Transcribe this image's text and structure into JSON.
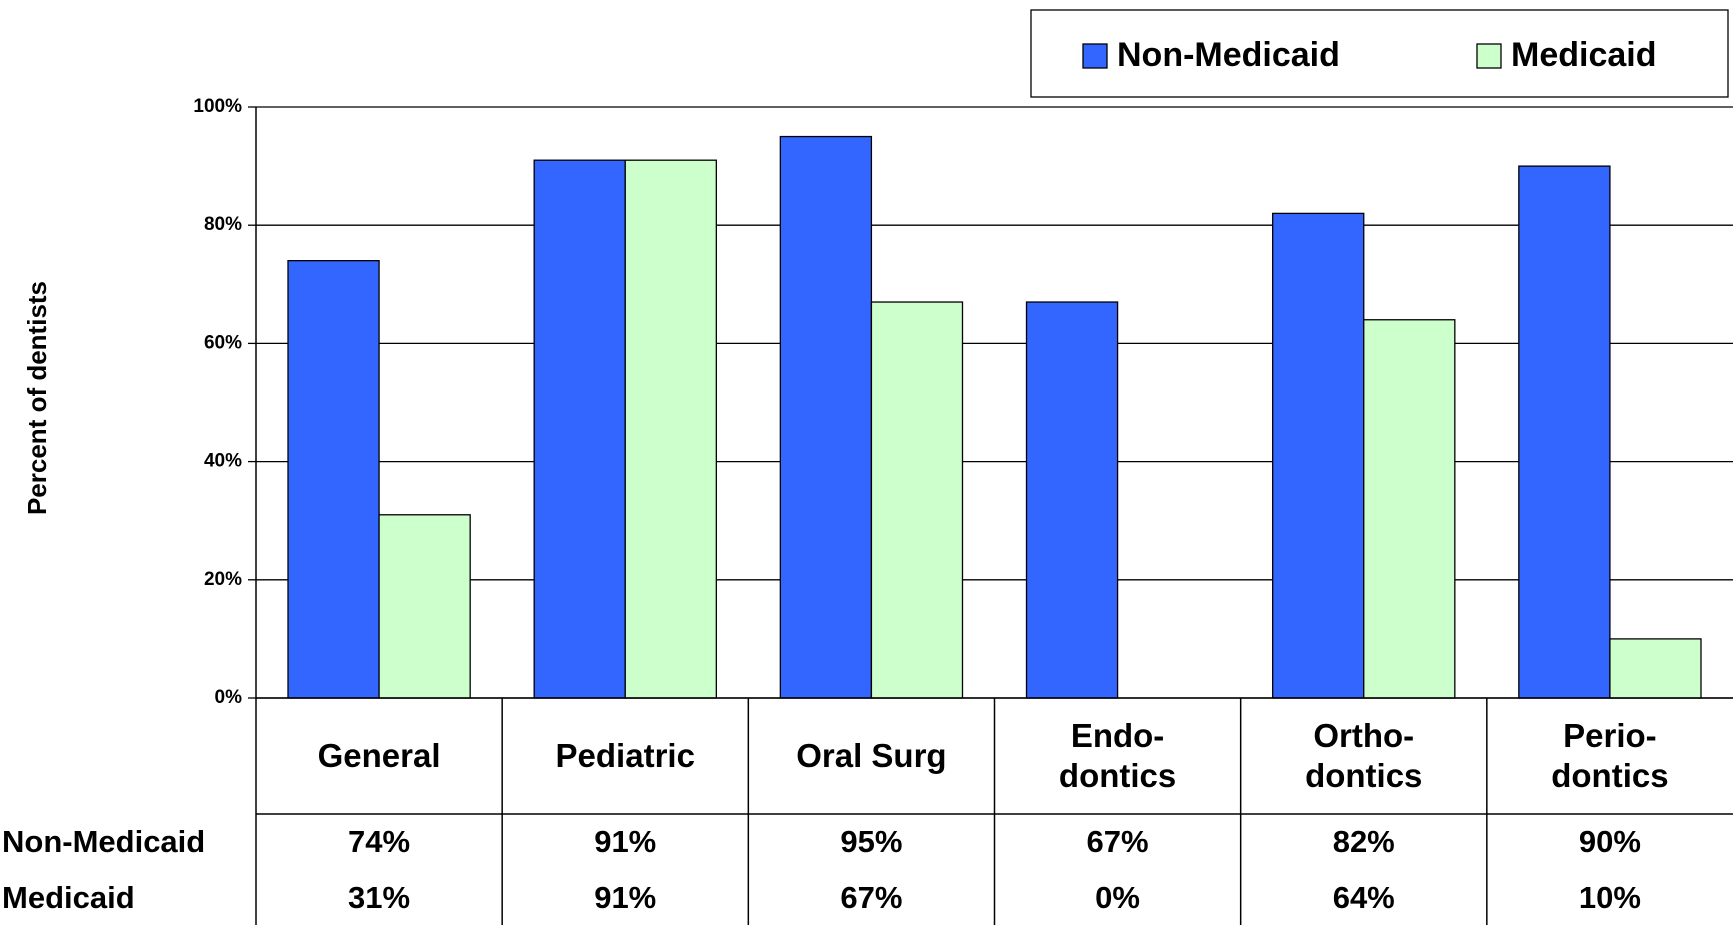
{
  "chart_data": {
    "type": "bar",
    "y_axis_label": "Percent of dentists",
    "categories": [
      "General",
      "Pediatric",
      "Oral Surg",
      "Endo-\ndontics",
      "Ortho-\ndontics",
      "Perio-\ndontics"
    ],
    "series": [
      {
        "name": "Non-Medicaid",
        "color": "#3366ff",
        "values": [
          74,
          91,
          95,
          67,
          82,
          90
        ],
        "value_labels": [
          "74%",
          "91%",
          "95%",
          "67%",
          "82%",
          "90%"
        ]
      },
      {
        "name": "Medicaid",
        "color": "#ccffcc",
        "values": [
          31,
          91,
          67,
          0,
          64,
          10
        ],
        "value_labels": [
          "31%",
          "91%",
          "67%",
          "0%",
          "64%",
          "10%"
        ]
      }
    ],
    "ylim": [
      0,
      100
    ],
    "yticks": [
      {
        "value": 0,
        "label": "0%"
      },
      {
        "value": 20,
        "label": "20%"
      },
      {
        "value": 40,
        "label": "40%"
      },
      {
        "value": 60,
        "label": "60%"
      },
      {
        "value": 80,
        "label": "80%"
      },
      {
        "value": 100,
        "label": "100%"
      }
    ],
    "grid": true,
    "legend": "top-right"
  }
}
